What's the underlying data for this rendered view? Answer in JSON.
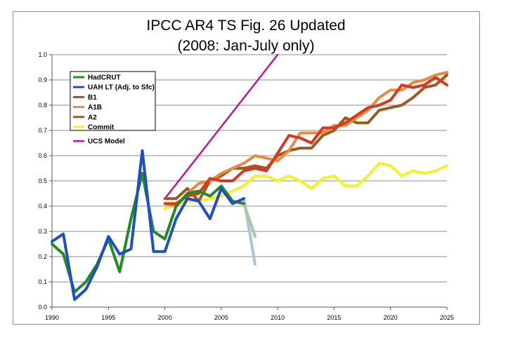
{
  "chart_data": {
    "type": "line",
    "title": "IPCC AR4 TS Fig. 26 Updated",
    "subtitle": "(2008: Jan-July only)",
    "xlabel": "",
    "ylabel": "",
    "xlim": [
      1990,
      2025
    ],
    "ylim": [
      0.0,
      1.0
    ],
    "x_ticks": [
      "1990",
      "1995",
      "2000",
      "2005",
      "2010",
      "2015",
      "2020",
      "2025"
    ],
    "y_ticks": [
      "0.0",
      "0.1",
      "0.2",
      "0.3",
      "0.4",
      "0.5",
      "0.6",
      "0.7",
      "0.8",
      "0.9",
      "1.0"
    ],
    "grid": "horizontal",
    "legend_position": "top-left",
    "series": [
      {
        "name": "HadCRUT",
        "color": "#228B22",
        "legend": true,
        "x": [
          1990,
          1991,
          1992,
          1993,
          1994,
          1995,
          1996,
          1997,
          1998,
          1999,
          2000,
          2001,
          2002,
          2003,
          2004,
          2005,
          2006,
          2007
        ],
        "values": [
          0.25,
          0.21,
          0.06,
          0.1,
          0.17,
          0.27,
          0.14,
          0.35,
          0.53,
          0.3,
          0.27,
          0.4,
          0.45,
          0.46,
          0.44,
          0.48,
          0.42,
          0.41
        ]
      },
      {
        "name": "UAH LT (Adj. to Sfc)",
        "color": "#1F4FC8",
        "legend": true,
        "x": [
          1990,
          1991,
          1992,
          1993,
          1994,
          1995,
          1996,
          1997,
          1998,
          1999,
          2000,
          2001,
          2002,
          2003,
          2004,
          2005,
          2006,
          2007
        ],
        "values": [
          0.26,
          0.29,
          0.03,
          0.07,
          0.16,
          0.28,
          0.21,
          0.23,
          0.62,
          0.22,
          0.22,
          0.35,
          0.43,
          0.42,
          0.35,
          0.47,
          0.41,
          0.43
        ]
      },
      {
        "name": "B1",
        "color": "#D9381E",
        "legend": true,
        "x": [
          2000,
          2001,
          2002,
          2003,
          2004,
          2005,
          2006,
          2007,
          2008,
          2009,
          2010,
          2011,
          2012,
          2013,
          2014,
          2015,
          2016,
          2017,
          2018,
          2019,
          2020,
          2021,
          2022,
          2023,
          2024,
          2025
        ],
        "values": [
          0.41,
          0.41,
          0.44,
          0.45,
          0.51,
          0.5,
          0.5,
          0.54,
          0.55,
          0.54,
          0.61,
          0.68,
          0.67,
          0.65,
          0.71,
          0.71,
          0.73,
          0.76,
          0.79,
          0.8,
          0.82,
          0.88,
          0.87,
          0.88,
          0.91,
          0.88
        ]
      },
      {
        "name": "A1B",
        "color": "#F0883A",
        "legend": true,
        "x": [
          2000,
          2001,
          2002,
          2003,
          2004,
          2005,
          2006,
          2007,
          2008,
          2009,
          2010,
          2011,
          2012,
          2013,
          2014,
          2015,
          2016,
          2017,
          2018,
          2019,
          2020,
          2021,
          2022,
          2023,
          2024,
          2025
        ],
        "values": [
          0.41,
          0.4,
          0.45,
          0.49,
          0.5,
          0.53,
          0.55,
          0.57,
          0.6,
          0.59,
          0.58,
          0.62,
          0.69,
          0.69,
          0.69,
          0.72,
          0.72,
          0.75,
          0.78,
          0.83,
          0.86,
          0.86,
          0.89,
          0.9,
          0.92,
          0.93
        ]
      },
      {
        "name": "A2",
        "color": "#9B5A1E",
        "legend": true,
        "x": [
          2000,
          2001,
          2002,
          2003,
          2004,
          2005,
          2006,
          2007,
          2008,
          2009,
          2010,
          2011,
          2012,
          2013,
          2014,
          2015,
          2016,
          2017,
          2018,
          2019,
          2020,
          2021,
          2022,
          2023,
          2024,
          2025
        ],
        "values": [
          0.43,
          0.43,
          0.47,
          0.42,
          0.5,
          0.52,
          0.55,
          0.55,
          0.56,
          0.55,
          0.6,
          0.62,
          0.63,
          0.63,
          0.68,
          0.7,
          0.75,
          0.73,
          0.73,
          0.78,
          0.79,
          0.8,
          0.83,
          0.87,
          0.88,
          0.92
        ]
      },
      {
        "name": "Commit",
        "color": "#F2F22A",
        "legend": true,
        "x": [
          2000,
          2001,
          2002,
          2003,
          2004,
          2005,
          2006,
          2007,
          2008,
          2009,
          2010,
          2011,
          2012,
          2013,
          2014,
          2015,
          2016,
          2017,
          2018,
          2019,
          2020,
          2021,
          2022,
          2023,
          2024,
          2025
        ],
        "values": [
          0.39,
          0.41,
          0.42,
          0.42,
          0.43,
          0.44,
          0.46,
          0.48,
          0.52,
          0.52,
          0.5,
          0.52,
          0.5,
          0.47,
          0.51,
          0.52,
          0.48,
          0.48,
          0.52,
          0.57,
          0.56,
          0.52,
          0.54,
          0.53,
          0.54,
          0.56
        ]
      },
      {
        "name": "UCS Model",
        "color": "#C8148C",
        "legend": true,
        "x": [
          2000,
          2010
        ],
        "values": [
          0.43,
          1.0
        ]
      },
      {
        "name": "",
        "color": "#A8C8A0",
        "legend": false,
        "x": [
          2007,
          2008
        ],
        "values": [
          0.41,
          0.28
        ]
      },
      {
        "name": "",
        "color": "#A8C4E0",
        "legend": false,
        "x": [
          2007,
          2008
        ],
        "values": [
          0.43,
          0.17
        ]
      }
    ]
  }
}
